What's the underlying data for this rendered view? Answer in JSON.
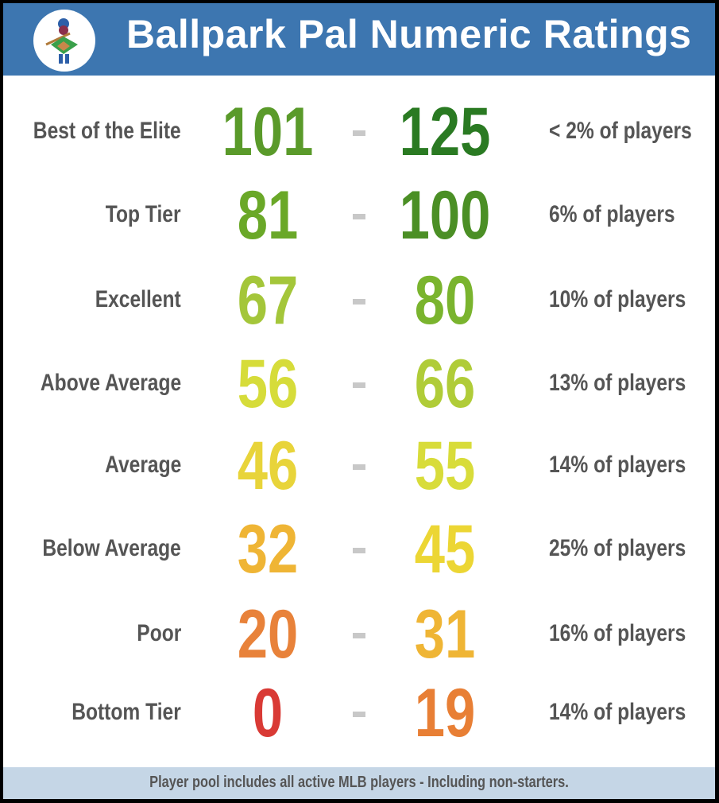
{
  "header": {
    "title": "Ballpark Pal Numeric Ratings",
    "logo": "baseball-mascot-logo",
    "background": "#3d76b0"
  },
  "rows": [
    {
      "label": "Best of the Elite",
      "low": "101",
      "high": "125",
      "share": "< 2% of players",
      "low_color": "#5a9a2a",
      "high_color": "#2a7a22"
    },
    {
      "label": "Top Tier",
      "low": "81",
      "high": "100",
      "share": "6% of players",
      "low_color": "#6aa828",
      "high_color": "#4b8f25"
    },
    {
      "label": "Excellent",
      "low": "67",
      "high": "80",
      "share": "10% of players",
      "low_color": "#a4c63a",
      "high_color": "#7ab42e"
    },
    {
      "label": "Above Average",
      "low": "56",
      "high": "66",
      "share": "13% of players",
      "low_color": "#d6dc3a",
      "high_color": "#b0cc38"
    },
    {
      "label": "Average",
      "low": "46",
      "high": "55",
      "share": "14% of players",
      "low_color": "#e8d43a",
      "high_color": "#d8dc3a"
    },
    {
      "label": "Below Average",
      "low": "32",
      "high": "45",
      "share": "25% of players",
      "low_color": "#efb535",
      "high_color": "#ecd634"
    },
    {
      "label": "Poor",
      "low": "20",
      "high": "31",
      "share": "16% of players",
      "low_color": "#e8823a",
      "high_color": "#efb535"
    },
    {
      "label": "Bottom Tier",
      "low": "0",
      "high": "19",
      "share": "14% of players",
      "low_color": "#d93a35",
      "high_color": "#e87f35"
    }
  ],
  "footer": {
    "note": "Player pool includes all active MLB players - Including non-starters."
  }
}
